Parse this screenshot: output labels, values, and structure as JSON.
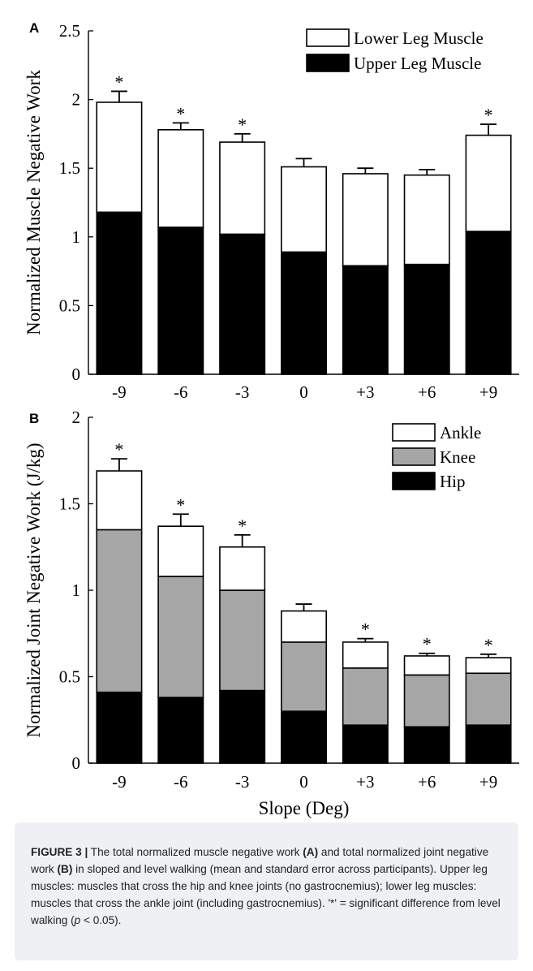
{
  "chart_data": [
    {
      "panel": "A",
      "type": "bar",
      "stacked": true,
      "categories": [
        "-9",
        "-6",
        "-3",
        "0",
        "+3",
        "+6",
        "+9"
      ],
      "series": [
        {
          "name": "Upper Leg Muscle",
          "color": "#000000",
          "values": [
            1.18,
            1.07,
            1.02,
            0.89,
            0.79,
            0.8,
            1.04
          ]
        },
        {
          "name": "Lower Leg Muscle",
          "color": "#ffffff",
          "values": [
            0.8,
            0.71,
            0.67,
            0.62,
            0.67,
            0.65,
            0.7
          ]
        }
      ],
      "totals": [
        1.98,
        1.78,
        1.69,
        1.51,
        1.46,
        1.45,
        1.74
      ],
      "error": [
        0.08,
        0.05,
        0.06,
        0.06,
        0.04,
        0.04,
        0.08
      ],
      "significant": [
        true,
        true,
        true,
        false,
        false,
        false,
        true
      ],
      "ylabel": "Normalized Muscle Negative Work",
      "xlabel": "",
      "ylim": [
        0,
        2.5
      ],
      "yticks": [
        "0",
        "0.5",
        "1",
        "1.5",
        "2",
        "2.5"
      ],
      "legend": "top-right",
      "grid": false
    },
    {
      "panel": "B",
      "type": "bar",
      "stacked": true,
      "categories": [
        "-9",
        "-6",
        "-3",
        "0",
        "+3",
        "+6",
        "+9"
      ],
      "series": [
        {
          "name": "Hip",
          "color": "#000000",
          "values": [
            0.41,
            0.38,
            0.42,
            0.3,
            0.22,
            0.21,
            0.22
          ]
        },
        {
          "name": "Knee",
          "color": "#a6a6a6",
          "values": [
            0.94,
            0.7,
            0.58,
            0.4,
            0.33,
            0.3,
            0.3
          ]
        },
        {
          "name": "Ankle",
          "color": "#ffffff",
          "values": [
            0.34,
            0.29,
            0.25,
            0.18,
            0.15,
            0.11,
            0.09
          ]
        }
      ],
      "totals": [
        1.69,
        1.37,
        1.25,
        0.88,
        0.7,
        0.62,
        0.61
      ],
      "error": [
        0.07,
        0.07,
        0.07,
        0.04,
        0.02,
        0.015,
        0.02
      ],
      "significant": [
        true,
        true,
        true,
        false,
        true,
        true,
        true
      ],
      "ylabel": "Normalized Joint Negative Work (J/kg)",
      "xlabel": "Slope (Deg)",
      "ylim": [
        0,
        2
      ],
      "yticks": [
        "0",
        "0.5",
        "1",
        "1.5",
        "2"
      ],
      "legend": "top-right",
      "grid": false
    }
  ],
  "star_symbol": "*",
  "caption": {
    "label": "FIGURE 3 |",
    "part1": " The total normalized muscle negative work ",
    "ref_a": "(A)",
    "part2": " and total normalized joint negative work ",
    "ref_b": "(B)",
    "part3": " in sloped and level walking (mean and standard error across participants). Upper leg muscles: muscles that cross the hip and knee joints (no gastrocnemius); lower leg muscles: muscles that cross the ankle joint (including gastrocnemius). '*' = significant difference from level walking (",
    "p_symbol": "p",
    "part4": " < 0.05)."
  }
}
